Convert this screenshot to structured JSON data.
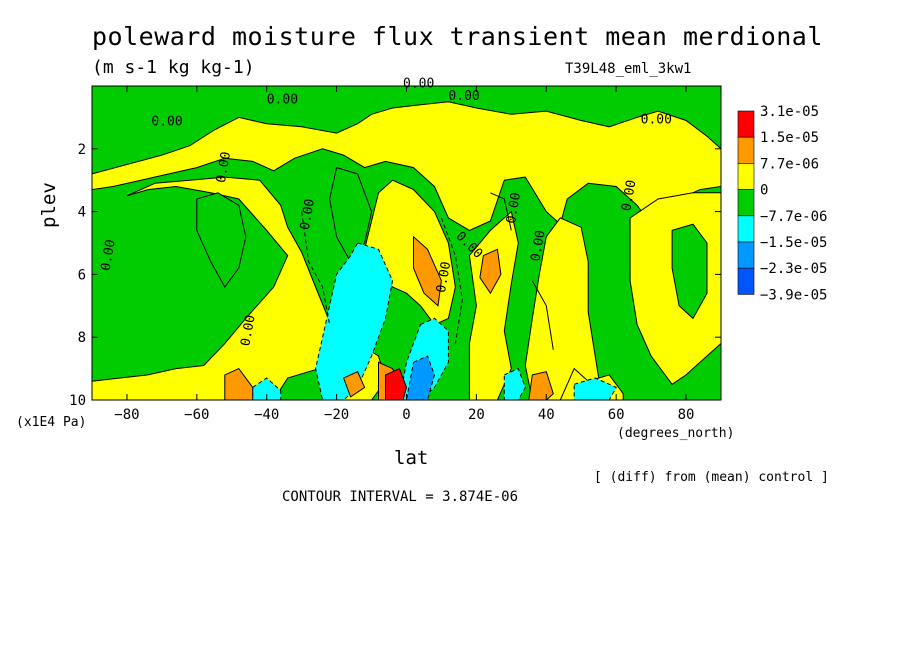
{
  "chart_data": {
    "type": "heatmap",
    "title": "poleward moisture flux transient mean merdional",
    "units": "(m s-1 kg kg-1)",
    "run_label": "T39L48_eml_3kw1",
    "xlabel": "lat",
    "xunit_caption": "(degrees_north)",
    "ylabel": "plev",
    "yunit_caption": "(x1E4 Pa)",
    "note": "[ (diff) from (mean) control ]",
    "contour_interval_text": "CONTOUR INTERVAL = 3.874E-06",
    "xlim": [
      -90,
      90
    ],
    "ylim": [
      0,
      10
    ],
    "y_inverted": true,
    "x_ticks": [
      -80,
      -60,
      -40,
      -20,
      0,
      20,
      40,
      60,
      80
    ],
    "y_ticks": [
      2,
      4,
      6,
      8,
      10
    ],
    "contour_labels": [
      "0.00",
      "0.00",
      "0.00",
      "0.00",
      "0.00",
      "0.00",
      "0.00",
      "0.00",
      "0.00",
      "0.00",
      "0.00",
      "0.00",
      "0.00",
      "0.00"
    ],
    "colorbar": {
      "labels": [
        "3.1e-05",
        "1.5e-05",
        "7.7e-06",
        "0",
        "−7.7e-06",
        "−1.5e-05",
        "−2.3e-05",
        "−3.9e-05"
      ],
      "colors": [
        "#ff0000",
        "#ff9900",
        "#ffff00",
        "#00cc00",
        "#00ffff",
        "#0099ff",
        "#0055ff"
      ]
    },
    "colors": {
      "positive": "#ffff00",
      "negative": "#00cc00",
      "strong_positive": "#ff9900",
      "very_strong_positive": "#ff0000",
      "weak_negative": "#00ffff",
      "strong_negative": "#0099ff"
    }
  }
}
